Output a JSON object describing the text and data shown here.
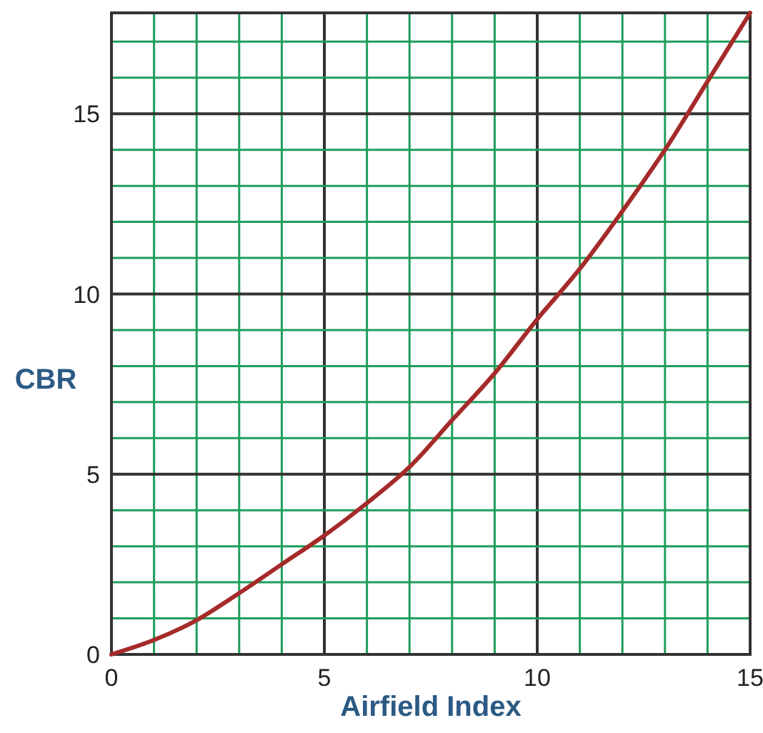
{
  "chart_data": {
    "type": "line",
    "xlabel": "Airfield Index",
    "ylabel": "CBR",
    "x": [
      0,
      1,
      2,
      3,
      4,
      5,
      6,
      7,
      8,
      9,
      10,
      11,
      12,
      13,
      14,
      15
    ],
    "series": [
      {
        "color": "#a52a2a",
        "values": [
          0,
          0.4,
          0.95,
          1.7,
          2.5,
          3.3,
          4.2,
          5.2,
          6.5,
          7.8,
          9.3,
          10.7,
          12.3,
          14.0,
          15.9,
          17.8
        ]
      }
    ],
    "xlim": [
      0,
      15
    ],
    "ylim": [
      0,
      17.8
    ],
    "xticks": [
      0,
      {
        "value": 1,
        "label": null
      },
      {
        "value": 2,
        "label": null
      },
      {
        "value": 3,
        "label": null
      },
      {
        "value": 4,
        "label": null
      },
      5,
      {
        "value": 6,
        "label": null
      },
      {
        "value": 7,
        "label": null
      },
      {
        "value": 8,
        "label": null
      },
      {
        "value": 9,
        "label": null
      },
      10,
      {
        "value": 11,
        "label": null
      },
      {
        "value": 12,
        "label": null
      },
      {
        "value": 13,
        "label": null
      },
      {
        "value": 14,
        "label": null
      },
      15
    ],
    "yticks": [
      0,
      {
        "value": 1,
        "label": null
      },
      {
        "value": 2,
        "label": null
      },
      {
        "value": 3,
        "label": null
      },
      {
        "value": 4,
        "label": null
      },
      5,
      {
        "value": 6,
        "label": null
      },
      {
        "value": 7,
        "label": null
      },
      {
        "value": 8,
        "label": null
      },
      {
        "value": 9,
        "label": null
      },
      10,
      {
        "value": 11,
        "label": null
      },
      {
        "value": 12,
        "label": null
      },
      {
        "value": 13,
        "label": null
      },
      {
        "value": 14,
        "label": null
      },
      15,
      {
        "value": 16,
        "label": null
      },
      {
        "value": 17,
        "label": null
      }
    ],
    "grid": true,
    "marker": "none",
    "line_style": "solid"
  }
}
